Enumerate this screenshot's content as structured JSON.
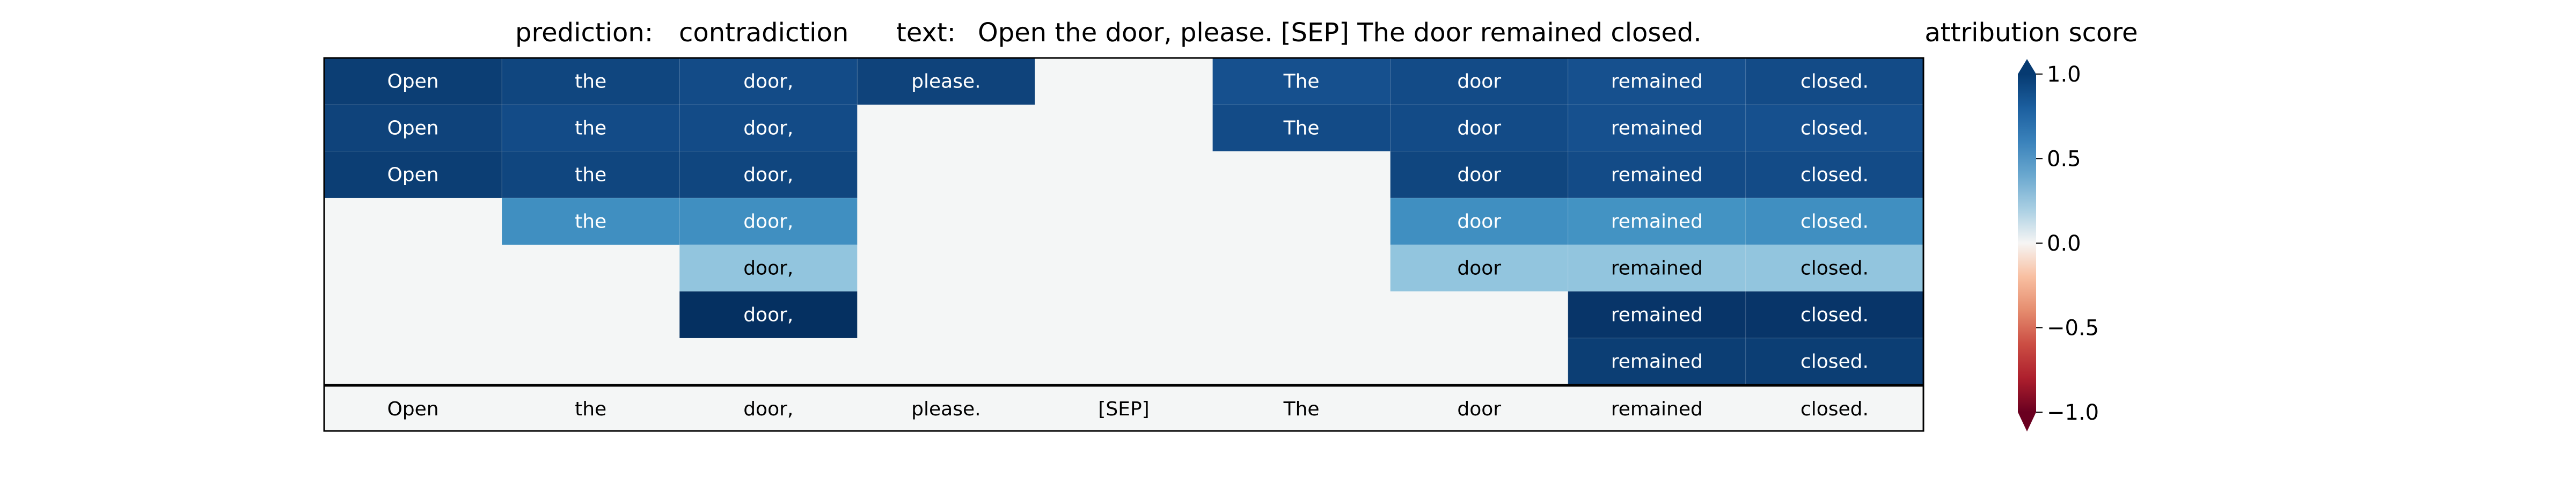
{
  "header": {
    "prediction_label": "prediction:",
    "prediction_value": "contradiction",
    "text_label": "text:",
    "text_value": "Open the door, please. [SEP] The door remained closed."
  },
  "colorbar": {
    "title": "attribution score",
    "ticks": [
      "1.0",
      "0.5",
      "0.0",
      "−0.5",
      "−1.0"
    ],
    "tick_values": [
      1.0,
      0.5,
      0.0,
      -0.5,
      -1.0
    ],
    "colormap": "RdBu",
    "range": [
      -1.0,
      1.0
    ]
  },
  "chart_data": {
    "type": "heatmap",
    "tokens": [
      "Open",
      "the",
      "door,",
      "please.",
      "[SEP]",
      "The",
      "door",
      "remained",
      "closed."
    ],
    "rows": [
      {
        "cells": [
          0.95,
          0.92,
          0.9,
          0.93,
          null,
          0.88,
          0.9,
          0.88,
          0.9
        ]
      },
      {
        "cells": [
          0.93,
          0.9,
          0.9,
          null,
          null,
          0.9,
          0.9,
          0.88,
          0.88
        ]
      },
      {
        "cells": [
          0.95,
          0.92,
          0.92,
          null,
          null,
          null,
          0.92,
          0.9,
          0.9
        ]
      },
      {
        "cells": [
          null,
          0.62,
          0.62,
          null,
          null,
          null,
          0.62,
          0.6,
          0.62
        ]
      },
      {
        "cells": [
          null,
          null,
          0.4,
          null,
          null,
          null,
          0.4,
          0.4,
          0.4
        ]
      },
      {
        "cells": [
          null,
          null,
          1.0,
          null,
          null,
          null,
          null,
          0.98,
          0.98
        ]
      },
      {
        "cells": [
          null,
          null,
          null,
          null,
          null,
          null,
          null,
          0.95,
          0.95
        ]
      }
    ],
    "empty_cell_color": "#f4f6f6",
    "colorbar_range": [
      -1.0,
      1.0
    ]
  }
}
